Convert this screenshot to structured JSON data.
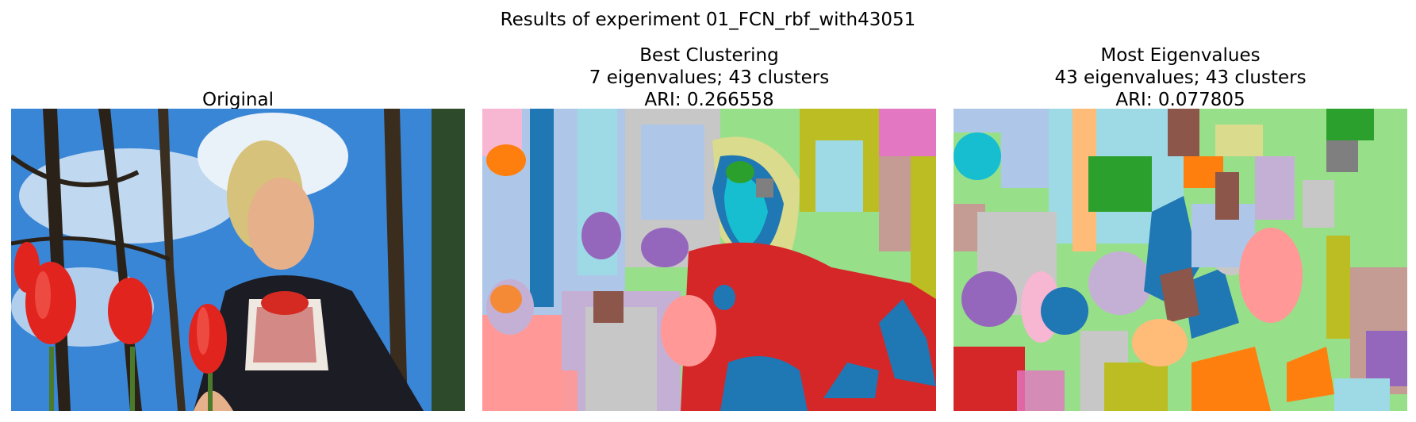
{
  "figure": {
    "suptitle": "Results of experiment 01_FCN_rbf_with43051"
  },
  "panels": [
    {
      "id": "original",
      "lines": [
        "Original"
      ]
    },
    {
      "id": "best",
      "lines": [
        "Best Clustering",
        "7 eigenvalues; 43 clusters",
        "ARI: 0.266558"
      ]
    },
    {
      "id": "most",
      "lines": [
        "Most Eigenvalues",
        "43 eigenvalues; 43 clusters",
        "ARI: 0.077805"
      ]
    }
  ],
  "colors": {
    "sky": "#3a86d6",
    "skin": "#e6b08a",
    "hair": "#d6c27a",
    "tulip": "#e2241e",
    "dress": "#1c1c24",
    "stem": "#4a7a2a",
    "tab_palette": [
      "#1f77b4",
      "#aec7e8",
      "#ff7f0e",
      "#ffbb78",
      "#2ca02c",
      "#98df8a",
      "#d62728",
      "#ff9896",
      "#9467bd",
      "#c5b0d5",
      "#8c564b",
      "#c49c94",
      "#e377c2",
      "#f7b6d2",
      "#7f7f7f",
      "#c7c7c7",
      "#bcbd22",
      "#dbdb8d",
      "#17becf",
      "#9edae5"
    ]
  }
}
